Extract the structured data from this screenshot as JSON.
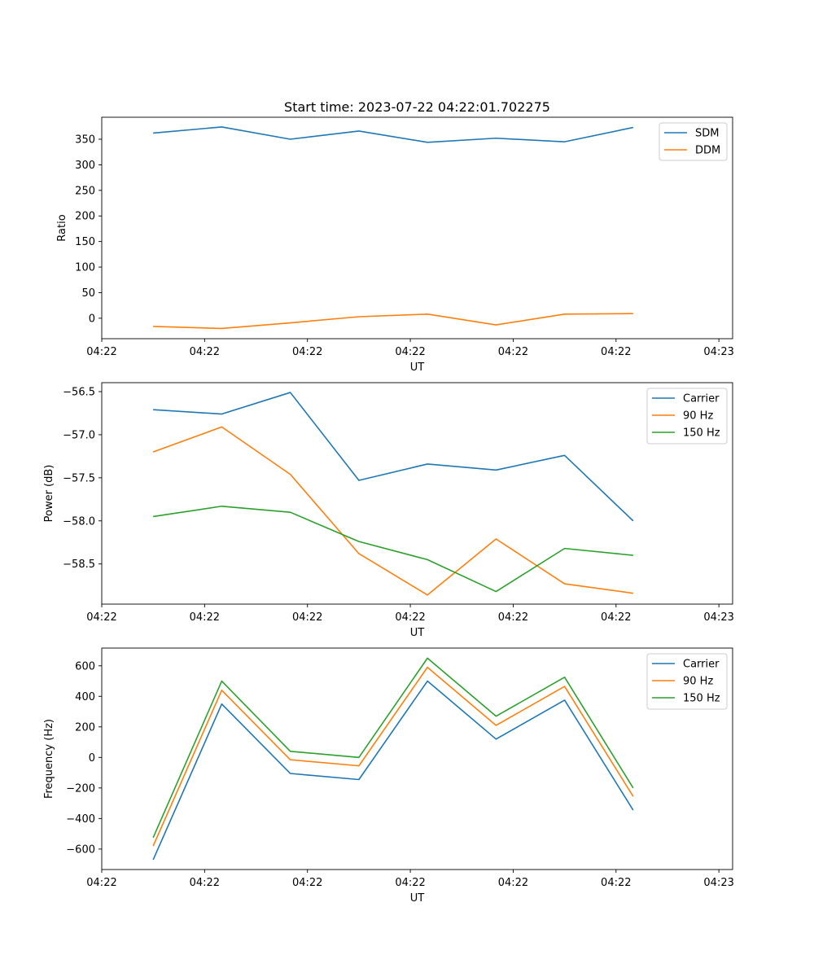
{
  "chart_data": [
    {
      "type": "line",
      "title": "Start time: 2023-07-22 04:22:01.702275",
      "xlabel": "UT",
      "ylabel": "Ratio",
      "x": [
        0,
        1,
        2,
        3,
        4,
        5,
        6,
        7
      ],
      "xlim": [
        -0.75,
        8.45
      ],
      "x_tick_positions": [
        -0.75,
        0.75,
        2.25,
        3.75,
        5.25,
        6.75,
        8.25
      ],
      "x_tick_labels": [
        "04:22",
        "04:22",
        "04:22",
        "04:22",
        "04:22",
        "04:22",
        "04:23"
      ],
      "ylim": [
        -40,
        393
      ],
      "y_ticks": [
        0,
        50,
        100,
        150,
        200,
        250,
        300,
        350
      ],
      "y_tick_labels": [
        "0",
        "50",
        "100",
        "150",
        "200",
        "250",
        "300",
        "350"
      ],
      "legend_position": "upper right",
      "series": [
        {
          "name": "SDM",
          "color": "#1f77b4",
          "values": [
            362,
            374,
            350,
            366,
            344,
            352,
            345,
            373
          ]
        },
        {
          "name": "DDM",
          "color": "#ff7f0e",
          "values": [
            -16,
            -20,
            -9,
            3,
            8,
            -13,
            8,
            9
          ]
        }
      ]
    },
    {
      "type": "line",
      "title": "",
      "xlabel": "UT",
      "ylabel": "Power (dB)",
      "x": [
        0,
        1,
        2,
        3,
        4,
        5,
        6,
        7
      ],
      "xlim": [
        -0.75,
        8.45
      ],
      "x_tick_positions": [
        -0.75,
        0.75,
        2.25,
        3.75,
        5.25,
        6.75,
        8.25
      ],
      "x_tick_labels": [
        "04:22",
        "04:22",
        "04:22",
        "04:22",
        "04:22",
        "04:22",
        "04:23"
      ],
      "ylim": [
        -58.966,
        -56.396
      ],
      "y_ticks": [
        -58.5,
        -58.0,
        -57.5,
        -57.0,
        -56.5
      ],
      "y_tick_labels": [
        "−58.5",
        "−58.0",
        "−57.5",
        "−57.0",
        "−56.5"
      ],
      "legend_position": "upper right",
      "series": [
        {
          "name": "Carrier",
          "color": "#1f77b4",
          "values": [
            -56.71,
            -56.76,
            -56.51,
            -57.53,
            -57.34,
            -57.41,
            -57.24,
            -58.0
          ]
        },
        {
          "name": "90 Hz",
          "color": "#ff7f0e",
          "values": [
            -57.2,
            -56.91,
            -57.46,
            -58.38,
            -58.86,
            -58.21,
            -58.73,
            -58.84
          ]
        },
        {
          "name": "150 Hz",
          "color": "#2ca02c",
          "values": [
            -57.95,
            -57.83,
            -57.9,
            -58.24,
            -58.45,
            -58.82,
            -58.32,
            -58.4
          ]
        }
      ]
    },
    {
      "type": "line",
      "title": "",
      "xlabel": "UT",
      "ylabel": "Frequency (Hz)",
      "x": [
        0,
        1,
        2,
        3,
        4,
        5,
        6,
        7
      ],
      "xlim": [
        -0.75,
        8.45
      ],
      "x_tick_positions": [
        -0.75,
        0.75,
        2.25,
        3.75,
        5.25,
        6.75,
        8.25
      ],
      "x_tick_labels": [
        "04:22",
        "04:22",
        "04:22",
        "04:22",
        "04:22",
        "04:22",
        "04:23"
      ],
      "ylim": [
        -734,
        716
      ],
      "y_ticks": [
        -600,
        -400,
        -200,
        0,
        200,
        400,
        600
      ],
      "y_tick_labels": [
        "−600",
        "−400",
        "−200",
        "0",
        "200",
        "400",
        "600"
      ],
      "legend_position": "upper right",
      "series": [
        {
          "name": "Carrier",
          "color": "#1f77b4",
          "values": [
            -670,
            350,
            -105,
            -145,
            500,
            120,
            375,
            -345
          ]
        },
        {
          "name": "90 Hz",
          "color": "#ff7f0e",
          "values": [
            -580,
            440,
            -15,
            -55,
            590,
            210,
            465,
            -255
          ]
        },
        {
          "name": "150 Hz",
          "color": "#2ca02c",
          "values": [
            -525,
            500,
            40,
            0,
            650,
            270,
            525,
            -200
          ]
        }
      ]
    }
  ]
}
